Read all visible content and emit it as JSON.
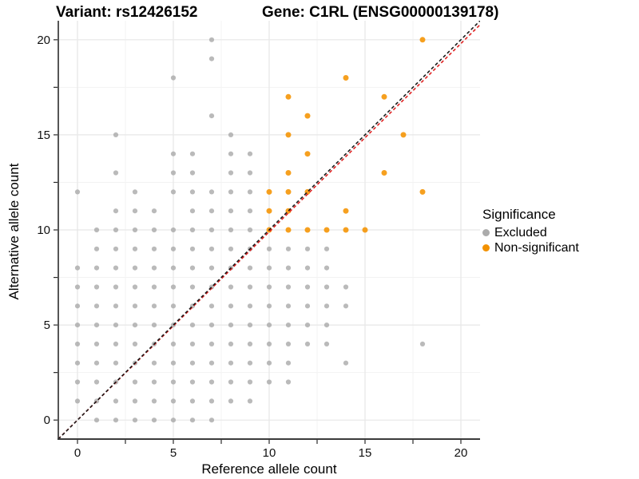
{
  "titles": {
    "variant": "Variant: rs12426152",
    "gene": "Gene: C1RL (ENSG00000139178)"
  },
  "legend": {
    "title": "Significance",
    "items": [
      {
        "label": "Excluded",
        "color": "#ABABAB"
      },
      {
        "label": "Non-significant",
        "color": "#F29100"
      }
    ]
  },
  "chart_data": {
    "type": "scatter",
    "title": "Variant: rs12426152 — Gene: C1RL (ENSG00000139178)",
    "xlabel": "Reference allele count",
    "ylabel": "Alternative allele count",
    "xlim": [
      -1,
      21
    ],
    "ylim": [
      -1,
      21
    ],
    "x_major_ticks": [
      0,
      5,
      10,
      15,
      20
    ],
    "y_major_ticks": [
      0,
      5,
      10,
      15,
      20
    ],
    "x_tick_labels": [
      "0",
      "5",
      "10",
      "15",
      "20"
    ],
    "y_tick_labels": [
      "0",
      "5",
      "10",
      "15",
      "20"
    ],
    "minor_tick_step": 2.5,
    "grid": true,
    "legend_position": "right",
    "point_colors": {
      "excluded": "#A6A6A6",
      "non_significant": "#F59300"
    },
    "reference_lines": [
      {
        "name": "identity",
        "slope": 1.0,
        "intercept": 0,
        "color": "#1A1A1A",
        "style": "dashed"
      },
      {
        "name": "fit",
        "slope": 0.99,
        "intercept": 0,
        "color": "#DE2020",
        "style": "dashed"
      }
    ],
    "series": [
      {
        "name": "Excluded",
        "color": "#A6A6A6",
        "points": [
          [
            1,
            0
          ],
          [
            2,
            0
          ],
          [
            3,
            0
          ],
          [
            4,
            0
          ],
          [
            5,
            0
          ],
          [
            6,
            0
          ],
          [
            7,
            0
          ],
          [
            0,
            1
          ],
          [
            1,
            1
          ],
          [
            2,
            1
          ],
          [
            3,
            1
          ],
          [
            4,
            1
          ],
          [
            5,
            1
          ],
          [
            6,
            1
          ],
          [
            7,
            1
          ],
          [
            8,
            1
          ],
          [
            9,
            1
          ],
          [
            0,
            2
          ],
          [
            1,
            2
          ],
          [
            2,
            2
          ],
          [
            3,
            2
          ],
          [
            4,
            2
          ],
          [
            5,
            2
          ],
          [
            6,
            2
          ],
          [
            7,
            2
          ],
          [
            8,
            2
          ],
          [
            9,
            2
          ],
          [
            10,
            2
          ],
          [
            11,
            2
          ],
          [
            0,
            3
          ],
          [
            1,
            3
          ],
          [
            2,
            3
          ],
          [
            3,
            3
          ],
          [
            4,
            3
          ],
          [
            5,
            3
          ],
          [
            6,
            3
          ],
          [
            7,
            3
          ],
          [
            8,
            3
          ],
          [
            9,
            3
          ],
          [
            10,
            3
          ],
          [
            11,
            3
          ],
          [
            14,
            3
          ],
          [
            0,
            4
          ],
          [
            1,
            4
          ],
          [
            2,
            4
          ],
          [
            3,
            4
          ],
          [
            4,
            4
          ],
          [
            5,
            4
          ],
          [
            6,
            4
          ],
          [
            7,
            4
          ],
          [
            8,
            4
          ],
          [
            9,
            4
          ],
          [
            10,
            4
          ],
          [
            11,
            4
          ],
          [
            12,
            4
          ],
          [
            13,
            4
          ],
          [
            18,
            4
          ],
          [
            0,
            5
          ],
          [
            1,
            5
          ],
          [
            2,
            5
          ],
          [
            3,
            5
          ],
          [
            4,
            5
          ],
          [
            5,
            5
          ],
          [
            6,
            5
          ],
          [
            7,
            5
          ],
          [
            8,
            5
          ],
          [
            9,
            5
          ],
          [
            10,
            5
          ],
          [
            11,
            5
          ],
          [
            12,
            5
          ],
          [
            13,
            5
          ],
          [
            0,
            6
          ],
          [
            1,
            6
          ],
          [
            2,
            6
          ],
          [
            3,
            6
          ],
          [
            4,
            6
          ],
          [
            5,
            6
          ],
          [
            6,
            6
          ],
          [
            7,
            6
          ],
          [
            8,
            6
          ],
          [
            9,
            6
          ],
          [
            10,
            6
          ],
          [
            11,
            6
          ],
          [
            12,
            6
          ],
          [
            13,
            6
          ],
          [
            14,
            6
          ],
          [
            0,
            7
          ],
          [
            1,
            7
          ],
          [
            2,
            7
          ],
          [
            3,
            7
          ],
          [
            4,
            7
          ],
          [
            5,
            7
          ],
          [
            6,
            7
          ],
          [
            7,
            7
          ],
          [
            8,
            7
          ],
          [
            9,
            7
          ],
          [
            10,
            7
          ],
          [
            11,
            7
          ],
          [
            12,
            7
          ],
          [
            13,
            7
          ],
          [
            14,
            7
          ],
          [
            0,
            8
          ],
          [
            1,
            8
          ],
          [
            2,
            8
          ],
          [
            3,
            8
          ],
          [
            4,
            8
          ],
          [
            5,
            8
          ],
          [
            6,
            8
          ],
          [
            7,
            8
          ],
          [
            8,
            8
          ],
          [
            9,
            8
          ],
          [
            10,
            8
          ],
          [
            11,
            8
          ],
          [
            12,
            8
          ],
          [
            13,
            8
          ],
          [
            1,
            9
          ],
          [
            2,
            9
          ],
          [
            3,
            9
          ],
          [
            4,
            9
          ],
          [
            5,
            9
          ],
          [
            6,
            9
          ],
          [
            7,
            9
          ],
          [
            8,
            9
          ],
          [
            9,
            9
          ],
          [
            10,
            9
          ],
          [
            11,
            9
          ],
          [
            12,
            9
          ],
          [
            13,
            9
          ],
          [
            1,
            10
          ],
          [
            2,
            10
          ],
          [
            3,
            10
          ],
          [
            4,
            10
          ],
          [
            5,
            10
          ],
          [
            6,
            10
          ],
          [
            7,
            10
          ],
          [
            8,
            10
          ],
          [
            9,
            10
          ],
          [
            2,
            11
          ],
          [
            3,
            11
          ],
          [
            4,
            11
          ],
          [
            6,
            11
          ],
          [
            7,
            11
          ],
          [
            8,
            11
          ],
          [
            9,
            11
          ],
          [
            0,
            12
          ],
          [
            3,
            12
          ],
          [
            5,
            12
          ],
          [
            6,
            12
          ],
          [
            7,
            12
          ],
          [
            8,
            12
          ],
          [
            9,
            12
          ],
          [
            2,
            13
          ],
          [
            5,
            13
          ],
          [
            6,
            13
          ],
          [
            8,
            13
          ],
          [
            9,
            13
          ],
          [
            5,
            14
          ],
          [
            6,
            14
          ],
          [
            8,
            14
          ],
          [
            9,
            14
          ],
          [
            2,
            15
          ],
          [
            8,
            15
          ],
          [
            7,
            16
          ],
          [
            5,
            18
          ],
          [
            7,
            19
          ],
          [
            7,
            20
          ]
        ]
      },
      {
        "name": "Non-significant",
        "color": "#F59300",
        "points": [
          [
            10,
            10
          ],
          [
            11,
            10
          ],
          [
            12,
            10
          ],
          [
            13,
            10
          ],
          [
            14,
            10
          ],
          [
            15,
            10
          ],
          [
            10,
            11
          ],
          [
            11,
            11
          ],
          [
            14,
            11
          ],
          [
            10,
            12
          ],
          [
            11,
            12
          ],
          [
            12,
            12
          ],
          [
            18,
            12
          ],
          [
            11,
            13
          ],
          [
            16,
            13
          ],
          [
            12,
            14
          ],
          [
            11,
            15
          ],
          [
            17,
            15
          ],
          [
            12,
            16
          ],
          [
            11,
            17
          ],
          [
            16,
            17
          ],
          [
            14,
            18
          ],
          [
            18,
            20
          ]
        ]
      }
    ]
  }
}
